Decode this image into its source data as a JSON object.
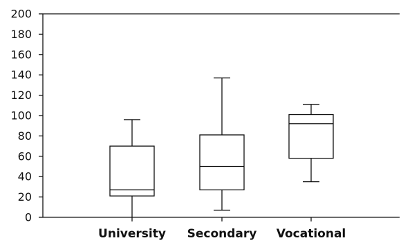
{
  "chart_data": {
    "type": "box",
    "categories": [
      "University",
      "Secondary",
      "Vocational"
    ],
    "boxes": [
      {
        "category": "University",
        "min": 0,
        "q1": 21,
        "median": 27,
        "q3": 70,
        "max": 96
      },
      {
        "category": "Secondary",
        "min": 7,
        "q1": 27,
        "median": 50,
        "q3": 81,
        "max": 137
      },
      {
        "category": "Vocational",
        "min": 35,
        "q1": 58,
        "median": 92,
        "q3": 101,
        "max": 111
      }
    ],
    "yticks": [
      "0",
      "20",
      "40",
      "60",
      "80",
      "100",
      "120",
      "140",
      "160",
      "180",
      "200"
    ],
    "ylim": [
      0,
      200
    ],
    "grid": false,
    "legend": "none",
    "title": "",
    "xlabel": "",
    "ylabel": ""
  },
  "colors": {
    "stroke": "#111111",
    "box_fill": "#ffffff",
    "background": "#ffffff"
  }
}
